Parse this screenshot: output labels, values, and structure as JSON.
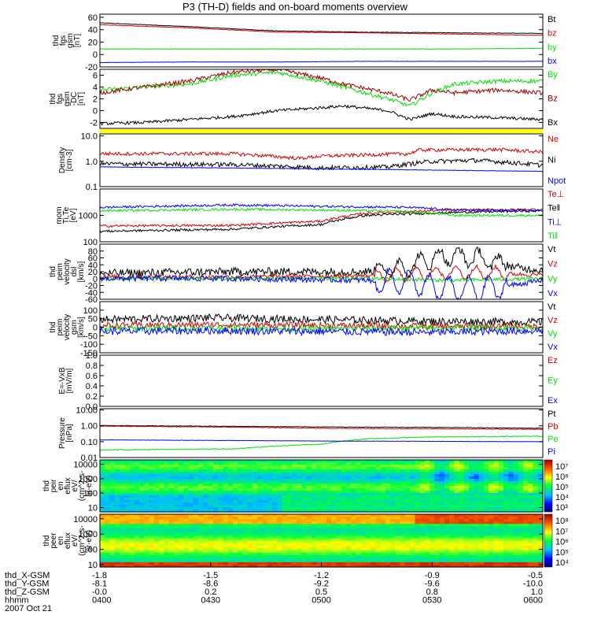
{
  "title": "P3 (TH-D) fields and on-board moments overview",
  "colors": {
    "black": "#000000",
    "red": "#d40000",
    "green": "#00e000",
    "blue": "#0000ff",
    "brown": "#a00000",
    "yellow": "#ffff00"
  },
  "footer": {
    "row_labels": [
      "thd_X-GSM",
      "thd_Y-GSM",
      "thd_Z-GSM",
      "hhmm",
      "2007 Oct 21"
    ],
    "columns": [
      [
        "-1.8",
        "-8.1",
        "-0.0",
        "0400"
      ],
      [
        "-1.5",
        "-8.6",
        "0.2",
        "0430"
      ],
      [
        "-1.2",
        "-9.2",
        "0.5",
        "0500"
      ],
      [
        "-0.9",
        "-9.6",
        "0.8",
        "0530"
      ],
      [
        "-0.5",
        "-10.0",
        "1.0",
        "0600"
      ]
    ]
  },
  "chart_data": [
    {
      "type": "line",
      "ylabel": [
        "thd",
        "fgs",
        "gsm",
        "[nT]"
      ],
      "ylim": [
        -20,
        65
      ],
      "yticks": [
        "60",
        "40",
        "20",
        "0",
        "-20"
      ],
      "tickvals": [
        60,
        40,
        20,
        0,
        -20
      ],
      "legend": [
        {
          "name": "Bt",
          "color": "#000000"
        },
        {
          "name": "bz",
          "color": "#d40000"
        },
        {
          "name": "by",
          "color": "#00e000"
        },
        {
          "name": "bx",
          "color": "#0000ff"
        }
      ],
      "series": [
        {
          "name": "Bt",
          "color": "#000000",
          "x": [
            0,
            0.2,
            0.4,
            0.6,
            0.8,
            1
          ],
          "y": [
            51,
            45,
            38,
            36,
            35,
            34
          ]
        },
        {
          "name": "bz",
          "color": "#d40000",
          "x": [
            0,
            0.2,
            0.4,
            0.6,
            0.8,
            1
          ],
          "y": [
            48,
            43,
            36,
            35,
            33,
            31
          ]
        },
        {
          "name": "by",
          "color": "#00e000",
          "x": [
            0,
            0.2,
            0.4,
            0.6,
            0.8,
            1
          ],
          "y": [
            9,
            9,
            9,
            9,
            9,
            10
          ]
        },
        {
          "name": "bx",
          "color": "#0000ff",
          "x": [
            0,
            0.2,
            0.4,
            0.6,
            0.8,
            1
          ],
          "y": [
            -13,
            -12,
            -12,
            -11,
            -11,
            -11
          ]
        }
      ]
    },
    {
      "type": "line",
      "ylabel": [
        "thd",
        "fgs",
        "gsm",
        "-DC",
        "[nT]"
      ],
      "ylim": [
        -3,
        7
      ],
      "yticks": [
        "6",
        "4",
        "2",
        "0",
        "-2"
      ],
      "tickvals": [
        6,
        4,
        2,
        0,
        -2
      ],
      "legend": [
        {
          "name": "By",
          "color": "#00e000"
        },
        {
          "name": "Bz",
          "color": "#a00000"
        },
        {
          "name": "Bx",
          "color": "#000000"
        }
      ],
      "series": [
        {
          "name": "By",
          "color": "#00e000",
          "x": [
            0,
            0.1,
            0.2,
            0.3,
            0.4,
            0.5,
            0.55,
            0.65,
            0.7,
            0.75,
            0.8,
            0.9,
            1
          ],
          "y": [
            3.5,
            4,
            4.5,
            6,
            6.5,
            5,
            4,
            2,
            0.8,
            3,
            4.5,
            5,
            5
          ]
        },
        {
          "name": "Bz",
          "color": "#a00000",
          "x": [
            0,
            0.1,
            0.2,
            0.3,
            0.4,
            0.5,
            0.55,
            0.65,
            0.7,
            0.75,
            0.8,
            0.9,
            1
          ],
          "y": [
            3,
            4,
            5,
            6.5,
            7,
            5.5,
            4.5,
            3,
            1.8,
            3.5,
            3,
            3.5,
            3
          ]
        },
        {
          "name": "Bx",
          "color": "#000000",
          "x": [
            0,
            0.1,
            0.2,
            0.3,
            0.4,
            0.5,
            0.55,
            0.65,
            0.7,
            0.75,
            0.8,
            0.9,
            1
          ],
          "y": [
            -2.2,
            -2,
            -1.5,
            -1,
            0,
            0.5,
            0.8,
            0,
            -1.5,
            -0.5,
            -1,
            -1.2,
            -1.5
          ]
        }
      ]
    },
    {
      "type": "line",
      "scale": "log",
      "ylabel": [
        "Density",
        "[cm-3]"
      ],
      "ylim": [
        0.1,
        12
      ],
      "yticks": [
        "10.0",
        "1.0",
        "0.1"
      ],
      "tickvals": [
        10,
        1,
        0.1
      ],
      "legend": [
        {
          "name": "Ne",
          "color": "#d40000"
        },
        {
          "name": "Ni",
          "color": "#000000"
        },
        {
          "name": "Npot",
          "color": "#0000ff"
        }
      ],
      "series": [
        {
          "name": "Ne",
          "color": "#d40000",
          "x": [
            0,
            0.3,
            0.45,
            0.5,
            0.6,
            0.7,
            0.72,
            0.9,
            1
          ],
          "y": [
            2,
            2,
            1.3,
            1.6,
            1.8,
            2,
            2.8,
            2.9,
            2.3
          ]
        },
        {
          "name": "Ni",
          "color": "#000000",
          "x": [
            0,
            0.3,
            0.5,
            0.65,
            0.75,
            0.85,
            1
          ],
          "y": [
            0.8,
            0.75,
            0.55,
            0.6,
            1,
            1.1,
            0.7
          ]
        },
        {
          "name": "Npot",
          "color": "#0000ff",
          "x": [
            0,
            0.5,
            1
          ],
          "y": [
            0.6,
            0.5,
            0.4
          ]
        }
      ]
    },
    {
      "type": "line",
      "scale": "log",
      "ylabel": [
        "mom",
        "Ti,Te",
        "[eV]"
      ],
      "ylim": [
        100,
        10000
      ],
      "yticks": [
        "1000",
        "100"
      ],
      "tickvals": [
        1000,
        100
      ],
      "legend": [
        {
          "name": "Te⊥",
          "color": "#d40000"
        },
        {
          "name": "Te‖",
          "color": "#000000"
        },
        {
          "name": "Ti⊥",
          "color": "#0000ff"
        },
        {
          "name": "Ti‖",
          "color": "#00e000"
        }
      ],
      "series": [
        {
          "name": "Te⊥",
          "color": "#d40000",
          "x": [
            0,
            0.3,
            0.5,
            0.6,
            0.8,
            1
          ],
          "y": [
            400,
            420,
            600,
            1200,
            1600,
            1700
          ]
        },
        {
          "name": "Te‖",
          "color": "#000000",
          "x": [
            0,
            0.3,
            0.5,
            0.6,
            0.8,
            1
          ],
          "y": [
            250,
            300,
            450,
            1000,
            1300,
            1500
          ]
        },
        {
          "name": "Ti⊥",
          "color": "#0000ff",
          "x": [
            0,
            0.3,
            0.5,
            0.7,
            0.8,
            1
          ],
          "y": [
            2000,
            2500,
            2200,
            2000,
            1600,
            1500
          ]
        },
        {
          "name": "Ti‖",
          "color": "#00e000",
          "x": [
            0,
            0.3,
            0.5,
            0.7,
            0.8,
            1
          ],
          "y": [
            1500,
            1700,
            1600,
            1400,
            1000,
            1000
          ]
        }
      ]
    },
    {
      "type": "line",
      "ylabel": [
        "thd",
        "peim",
        "velocity",
        "dsl",
        "[km/s]"
      ],
      "ylim": [
        -60,
        100
      ],
      "yticks": [
        "80",
        "60",
        "40",
        "20",
        "0",
        "-20",
        "-40",
        "-60"
      ],
      "tickvals": [
        80,
        60,
        40,
        20,
        0,
        -20,
        -40,
        -60
      ],
      "legend": [
        {
          "name": "Vt",
          "color": "#000000"
        },
        {
          "name": "Vz",
          "color": "#d40000"
        },
        {
          "name": "Vy",
          "color": "#00e000"
        },
        {
          "name": "Vx",
          "color": "#0000ff"
        }
      ],
      "series": [
        {
          "name": "Vt",
          "color": "#000000",
          "x": [
            0,
            0.3,
            0.6,
            0.7,
            0.75,
            0.8,
            0.85,
            0.9,
            0.95,
            1
          ],
          "y": [
            15,
            20,
            20,
            35,
            60,
            65,
            60,
            45,
            30,
            25
          ]
        },
        {
          "name": "Vz",
          "color": "#d40000",
          "x": [
            0,
            0.3,
            0.6,
            0.7,
            0.8,
            0.9,
            1
          ],
          "y": [
            5,
            5,
            8,
            12,
            18,
            15,
            10
          ]
        },
        {
          "name": "Vy",
          "color": "#00e000",
          "x": [
            0,
            0.3,
            0.6,
            0.8,
            1
          ],
          "y": [
            0,
            0,
            0,
            -5,
            0
          ]
        },
        {
          "name": "Vx",
          "color": "#0000ff",
          "x": [
            0,
            0.3,
            0.6,
            0.7,
            0.75,
            0.8,
            0.85,
            0.9,
            0.95,
            1
          ],
          "y": [
            0,
            0,
            -5,
            -10,
            -25,
            -30,
            -30,
            -25,
            -15,
            -5
          ]
        }
      ]
    },
    {
      "type": "line",
      "ylabel": [
        "thd",
        "peim",
        "velocity",
        "gsm",
        "[km/s]"
      ],
      "ylim": [
        -150,
        150
      ],
      "yticks": [
        "100",
        "50",
        "0",
        "-50",
        "-100",
        "-150"
      ],
      "tickvals": [
        100,
        50,
        0,
        -50,
        -100,
        -150
      ],
      "legend": [
        {
          "name": "Vt",
          "color": "#000000"
        },
        {
          "name": "Vz",
          "color": "#d40000"
        },
        {
          "name": "Vy",
          "color": "#00e000"
        },
        {
          "name": "Vx",
          "color": "#0000ff"
        }
      ],
      "series": [
        {
          "name": "Vt",
          "color": "#000000",
          "x": [
            0,
            0.25,
            0.5,
            0.75,
            1
          ],
          "y": [
            45,
            55,
            45,
            35,
            30
          ]
        },
        {
          "name": "Vz",
          "color": "#d40000",
          "x": [
            0,
            0.25,
            0.5,
            0.75,
            1
          ],
          "y": [
            10,
            15,
            10,
            5,
            5
          ]
        },
        {
          "name": "Vy",
          "color": "#00e000",
          "x": [
            0,
            0.25,
            0.5,
            0.75,
            1
          ],
          "y": [
            -10,
            -5,
            -10,
            -5,
            -5
          ]
        },
        {
          "name": "Vx",
          "color": "#0000ff",
          "x": [
            0,
            0.25,
            0.5,
            0.75,
            1
          ],
          "y": [
            -25,
            -20,
            -25,
            -30,
            -20
          ]
        }
      ]
    },
    {
      "type": "line",
      "ylabel": [
        "E=-VxB",
        "[mV/m]"
      ],
      "ylim": [
        0,
        1
      ],
      "yticks": [
        "1.0",
        "0.8",
        "0.6",
        "0.4",
        "0.2",
        "0.0"
      ],
      "tickvals": [
        1,
        0.8,
        0.6,
        0.4,
        0.2,
        0
      ],
      "legend": [
        {
          "name": "Ez",
          "color": "#d40000"
        },
        {
          "name": "Ey",
          "color": "#00e000"
        },
        {
          "name": "Ex",
          "color": "#0000ff"
        }
      ],
      "series": []
    },
    {
      "type": "line",
      "scale": "log",
      "ylabel": [
        "Pressure",
        "[nPa]"
      ],
      "ylim": [
        0.01,
        12
      ],
      "yticks": [
        "10.00",
        "1.00",
        "0.10",
        "0.01"
      ],
      "tickvals": [
        10,
        1,
        0.1,
        0.01
      ],
      "legend": [
        {
          "name": "Pt",
          "color": "#000000"
        },
        {
          "name": "Pb",
          "color": "#d40000"
        },
        {
          "name": "Pe",
          "color": "#00e000"
        },
        {
          "name": "Pi",
          "color": "#0000ff"
        }
      ],
      "series": [
        {
          "name": "Pt",
          "color": "#000000",
          "x": [
            0,
            0.25,
            0.5,
            0.75,
            1
          ],
          "y": [
            1.05,
            0.95,
            0.85,
            0.8,
            0.7
          ]
        },
        {
          "name": "Pb",
          "color": "#d40000",
          "x": [
            0,
            0.25,
            0.5,
            0.75,
            1
          ],
          "y": [
            0.95,
            0.85,
            0.7,
            0.65,
            0.6
          ]
        },
        {
          "name": "Pe",
          "color": "#00e000",
          "x": [
            0,
            0.3,
            0.5,
            0.6,
            0.75,
            1
          ],
          "y": [
            0.03,
            0.035,
            0.07,
            0.15,
            0.2,
            0.22
          ]
        },
        {
          "name": "Pi",
          "color": "#0000ff",
          "x": [
            0,
            0.5,
            1
          ],
          "y": [
            0.13,
            0.11,
            0.1
          ]
        }
      ]
    },
    {
      "type": "heatmap",
      "ylabel": [
        "thd",
        "peir",
        "en",
        "eflux",
        "eV/",
        "(cm^2-s-",
        "sr-eV)"
      ],
      "ylim": [
        5,
        20000
      ],
      "yticks": [
        "10000",
        "1000",
        "100",
        "10"
      ],
      "tickvals": [
        10000,
        1000,
        100,
        10
      ],
      "colorbar": {
        "ticks": [
          "10⁷",
          "10⁶",
          "10⁵",
          "10⁴",
          "10³"
        ]
      }
    },
    {
      "type": "heatmap",
      "ylabel": [
        "thd",
        "peer",
        "en",
        "eflux",
        "eV/",
        "(cm^2-s-",
        "sr-eV)"
      ],
      "ylim": [
        7,
        20000
      ],
      "yticks": [
        "10000",
        "1000",
        "100",
        "10"
      ],
      "tickvals": [
        10000,
        1000,
        100,
        10
      ],
      "colorbar": {
        "ticks": [
          "10⁸",
          "10⁷",
          "10⁶",
          "10⁵",
          "10⁴"
        ]
      }
    }
  ]
}
